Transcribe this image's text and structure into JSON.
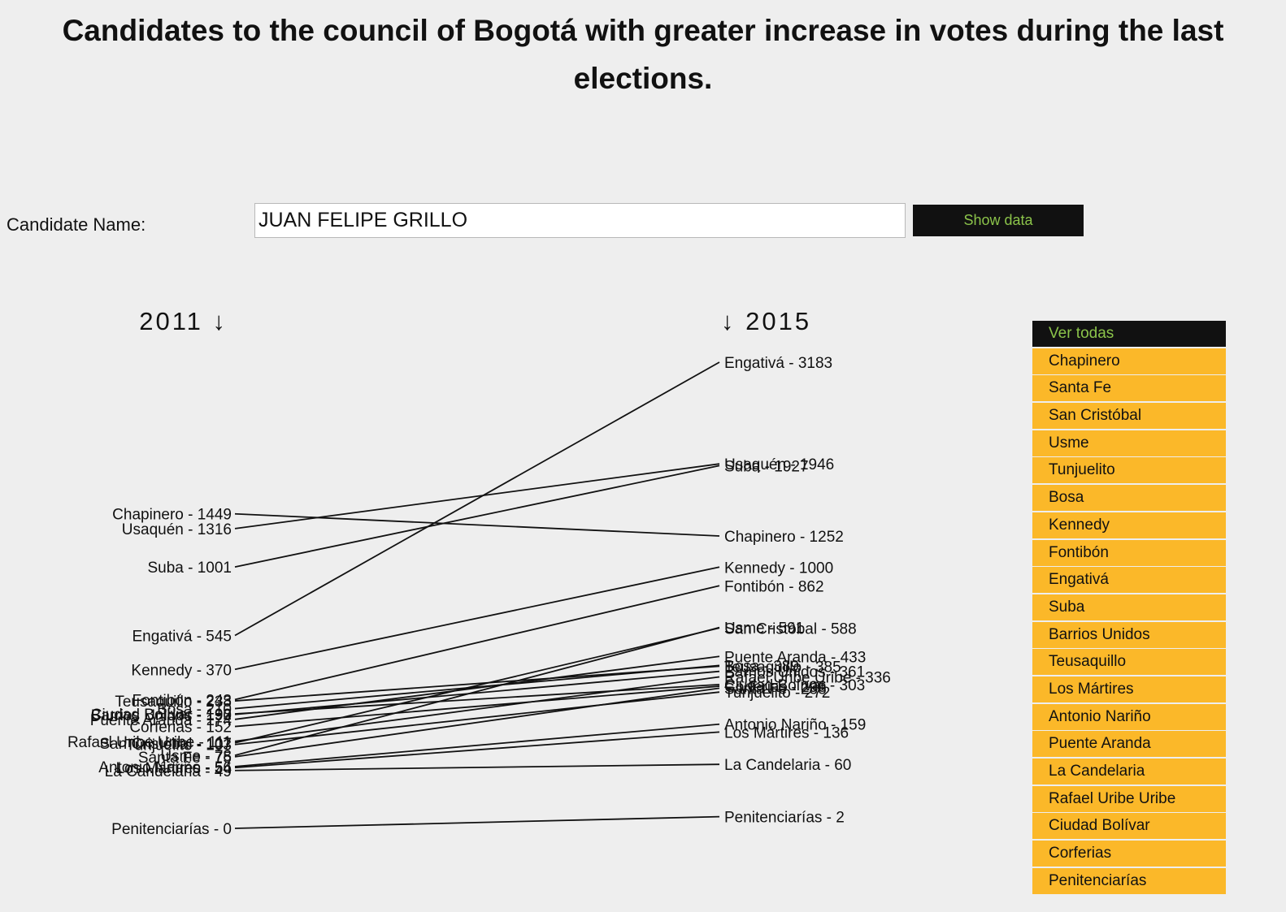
{
  "title": "Candidates to the council of Bogotá with greater increase in votes during the last elections.",
  "form": {
    "label": "Candidate Name:",
    "input_value": "JUAN FELIPE GRILLO",
    "button_label": "Show data"
  },
  "colors": {
    "accent_green": "#8bc34a",
    "button_dark": "#111111",
    "filter_orange": "#fbb829",
    "background": "#eeeeee"
  },
  "chart_data": {
    "type": "slope",
    "left_label": "2011 ↓",
    "right_label": "↓ 2015",
    "scale": "sqrt",
    "rows": [
      {
        "name": "Chapinero",
        "v2011": 1449,
        "v2015": 1252
      },
      {
        "name": "Santa Fe",
        "v2011": 75,
        "v2015": 288
      },
      {
        "name": "San Cristóbal",
        "v2011": 107,
        "v2015": 588
      },
      {
        "name": "Usme",
        "v2011": 78,
        "v2015": 591
      },
      {
        "name": "Tunjuelito",
        "v2011": 103,
        "v2015": 272
      },
      {
        "name": "Bosa",
        "v2011": 210,
        "v2015": 389
      },
      {
        "name": "Kennedy",
        "v2011": 370,
        "v2015": 1000
      },
      {
        "name": "Fontibón",
        "v2011": 243,
        "v2015": 862
      },
      {
        "name": "Engativá",
        "v2011": 545,
        "v2015": 3183
      },
      {
        "name": "Suba",
        "v2011": 1001,
        "v2015": 1927
      },
      {
        "name": "Barrios Unidos",
        "v2011": 190,
        "v2015": 361
      },
      {
        "name": "Teusaquillo",
        "v2011": 238,
        "v2015": 385
      },
      {
        "name": "Los Mártires",
        "v2011": 54,
        "v2015": 136
      },
      {
        "name": "Antonio Nariño",
        "v2011": 56,
        "v2015": 159
      },
      {
        "name": "Puente Aranda",
        "v2011": 174,
        "v2015": 433
      },
      {
        "name": "La Candelaria",
        "v2011": 49,
        "v2015": 60
      },
      {
        "name": "Rafael Uribe Uribe",
        "v2011": 111,
        "v2015": 336
      },
      {
        "name": "Ciudad Bolívar",
        "v2011": 192,
        "v2015": 303
      },
      {
        "name": "Corferias",
        "v2011": 152,
        "v2015": 296
      },
      {
        "name": "Penitenciarías",
        "v2011": 0,
        "v2015": 2
      },
      {
        "name": "Usaquén",
        "v2011": 1316,
        "v2015": 1946
      }
    ]
  },
  "filters": {
    "items": [
      "Ver todas",
      "Chapinero",
      "Santa Fe",
      "San Cristóbal",
      "Usme",
      "Tunjuelito",
      "Bosa",
      "Kennedy",
      "Fontibón",
      "Engativá",
      "Suba",
      "Barrios Unidos",
      "Teusaquillo",
      "Los Mártires",
      "Antonio Nariño",
      "Puente Aranda",
      "La Candelaria",
      "Rafael Uribe Uribe",
      "Ciudad Bolívar",
      "Corferias",
      "Penitenciarías"
    ],
    "active_index": 0
  }
}
